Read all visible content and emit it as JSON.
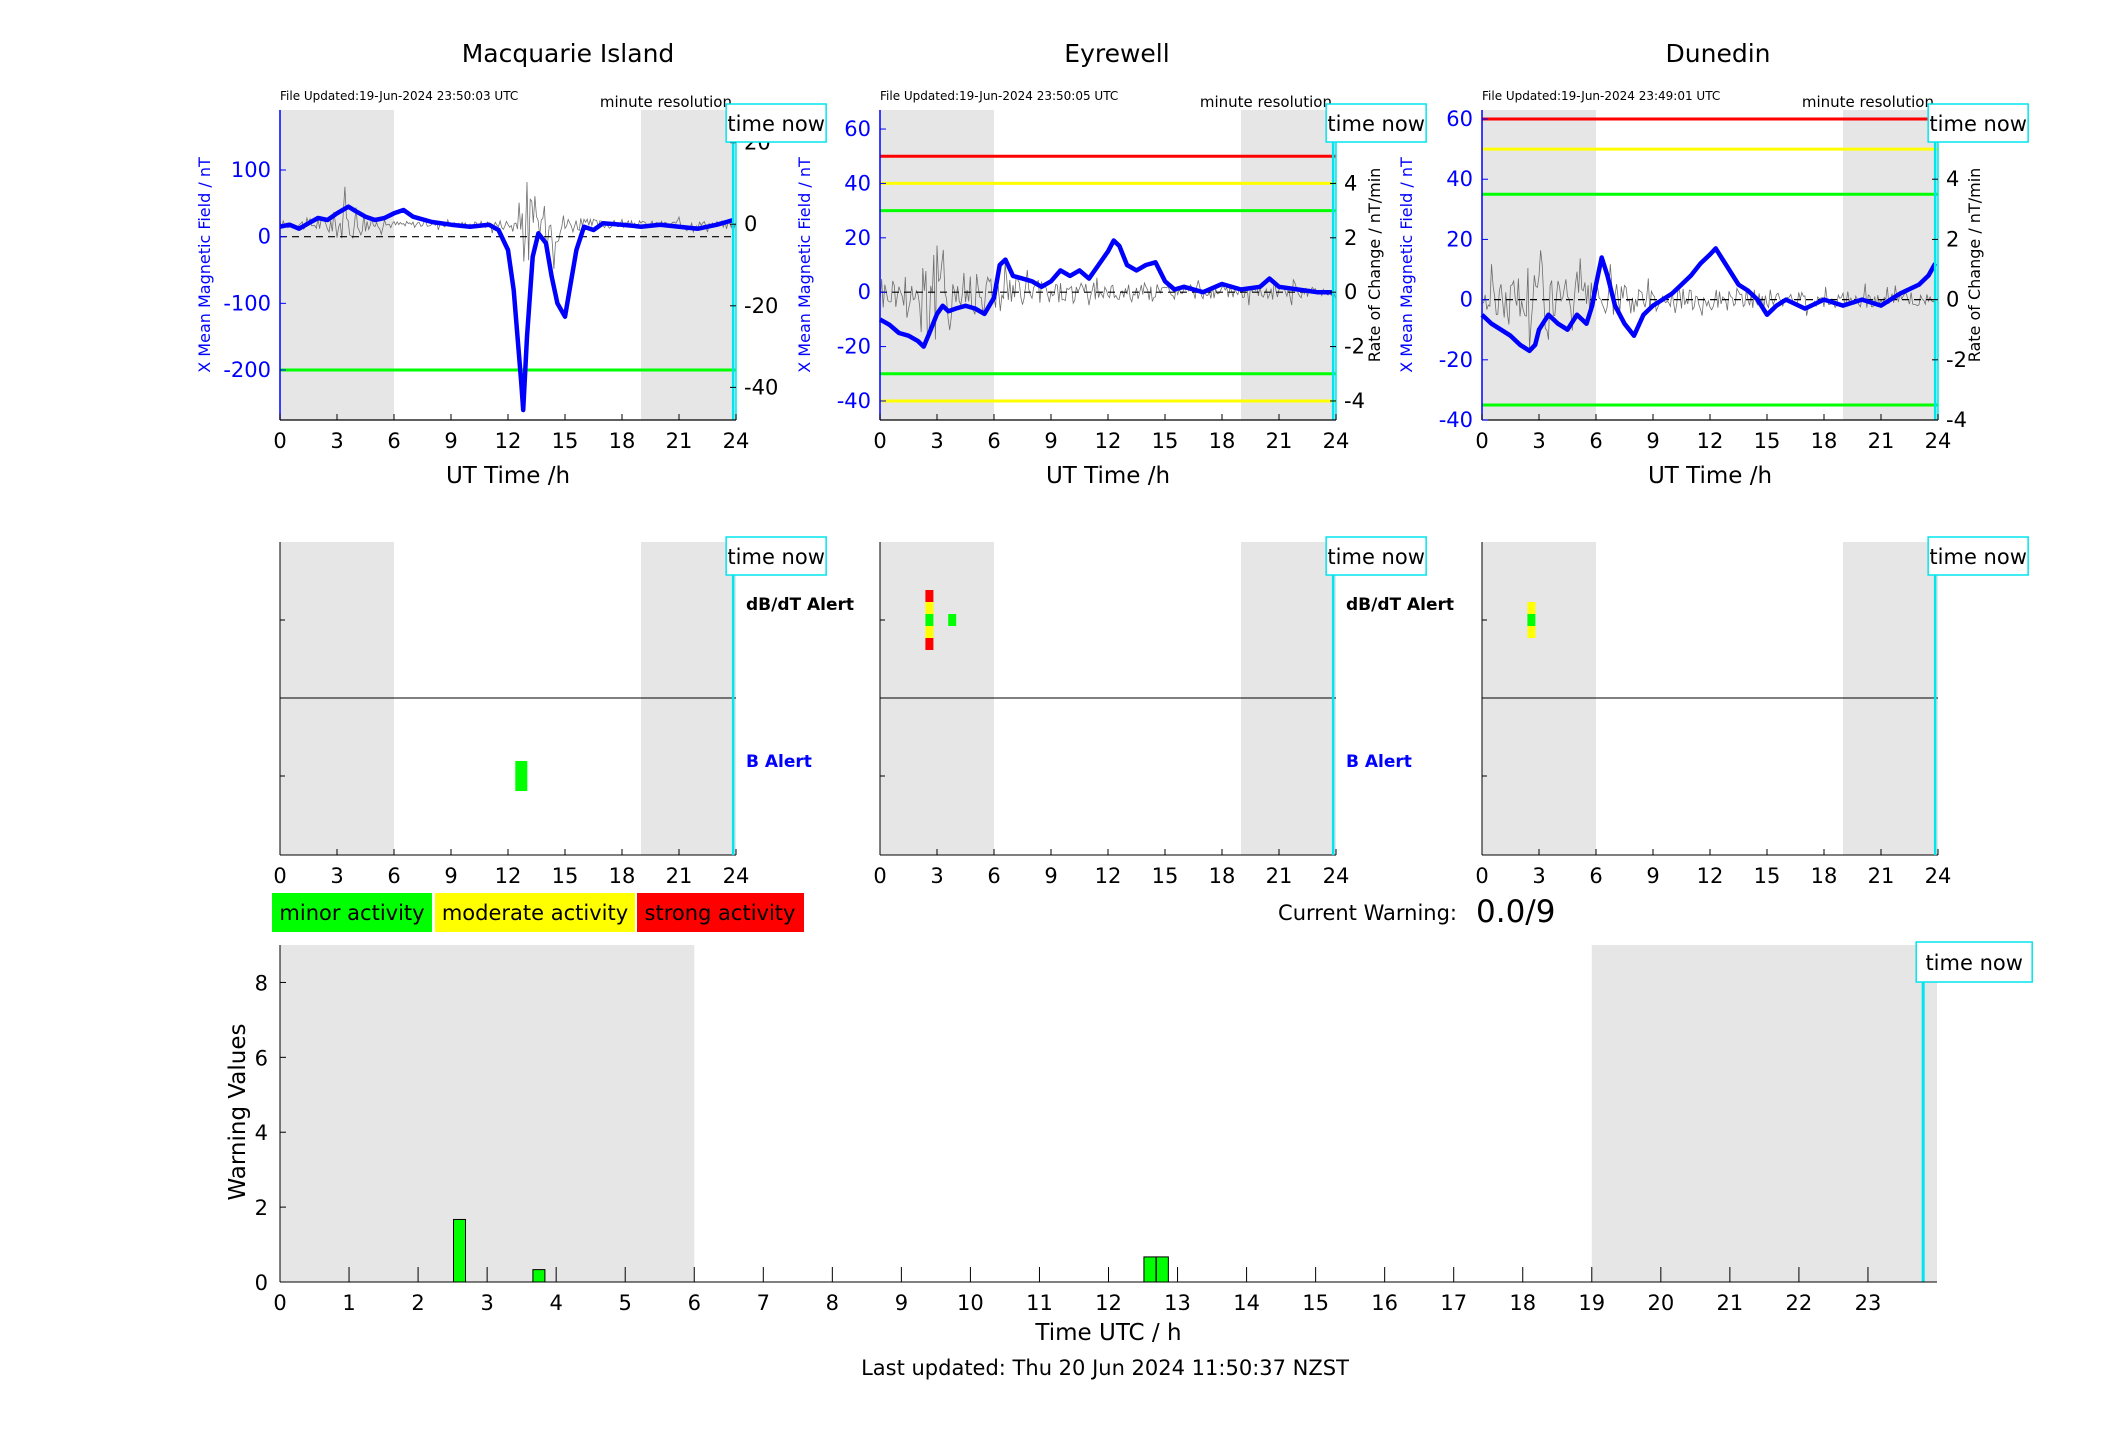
{
  "footer": {
    "last_updated": "Last updated: Thu 20 Jun 2024 11:50:37 NZST"
  },
  "legend": {
    "minor": "minor activity",
    "moderate": "moderate activity",
    "strong": "strong activity"
  },
  "current_warning": {
    "label": "Current Warning:",
    "value": "0.0/9"
  },
  "common": {
    "time_now": "time now",
    "minute_resolution": "minute resolution",
    "dbdt_alert": "dB/dT Alert",
    "b_alert": "B Alert",
    "colors": {
      "field": "#0000ff",
      "shade": "#e6e6e6",
      "minor": "#00ff00",
      "moderate": "#ffff00",
      "strong": "#ff0000",
      "time_now": "#00e5ee"
    }
  },
  "chart_data": [
    {
      "type": "line",
      "title": "Macquarie Island",
      "file_updated": "File Updated:19-Jun-2024 23:50:03 UTC",
      "xlabel": "UT Time /h",
      "ylabel_left": "X Mean Magnetic Field / nT",
      "ylabel_right": "",
      "xlim": [
        0,
        24
      ],
      "xticks": [
        0,
        3,
        6,
        9,
        12,
        15,
        18,
        21,
        24
      ],
      "ylim_left": [
        -275,
        190
      ],
      "yticks_left": [
        -200,
        -100,
        0,
        100
      ],
      "ylim_right": [
        -48,
        28
      ],
      "yticks_right": [
        -40,
        -20,
        0,
        20
      ],
      "shaded_hours": [
        [
          0,
          6
        ],
        [
          19,
          24
        ]
      ],
      "time_now_hour": 23.85,
      "thresholds": [
        {
          "color": "#00ff00",
          "value": -200
        }
      ],
      "series": [
        {
          "values_x": [
            0,
            0.5,
            1,
            1.5,
            2,
            2.5,
            3,
            3.3,
            3.6,
            4,
            4.5,
            5,
            5.5,
            6,
            6.5,
            7,
            8,
            9,
            10,
            11,
            11.5,
            12,
            12.3,
            12.5,
            12.7,
            12.8,
            13,
            13.3,
            13.6,
            14,
            14.3,
            14.6,
            15,
            15.3,
            15.6,
            16,
            16.5,
            17,
            18,
            19,
            20,
            21,
            22,
            23,
            23.5,
            23.85
          ],
          "values_y": [
            15,
            18,
            12,
            20,
            28,
            25,
            35,
            40,
            45,
            38,
            30,
            25,
            28,
            35,
            40,
            30,
            22,
            18,
            15,
            18,
            10,
            -20,
            -80,
            -150,
            -220,
            -260,
            -150,
            -30,
            5,
            -10,
            -60,
            -100,
            -120,
            -70,
            -20,
            15,
            10,
            20,
            18,
            15,
            18,
            15,
            12,
            18,
            22,
            25
          ]
        }
      ],
      "rate_of_change": {
        "x": [
          0,
          1,
          2,
          3,
          3.5,
          4,
          5,
          6,
          8,
          10,
          12,
          12.5,
          13,
          13.5,
          14,
          14.5,
          15,
          16,
          18,
          20,
          22,
          24
        ],
        "amplitude": [
          2,
          3,
          4,
          8,
          10,
          7,
          3,
          2,
          1.5,
          1.5,
          3,
          10,
          28,
          14,
          10,
          12,
          6,
          3,
          2,
          2,
          2,
          2
        ]
      }
    },
    {
      "type": "line",
      "title": "Eyrewell",
      "file_updated": "File Updated:19-Jun-2024 23:50:05 UTC",
      "xlabel": "UT Time /h",
      "ylabel_left": "X Mean Magnetic Field / nT",
      "ylabel_right": "Rate of Change / nT/min",
      "xlim": [
        0,
        24
      ],
      "xticks": [
        0,
        3,
        6,
        9,
        12,
        15,
        18,
        21,
        24
      ],
      "ylim_left": [
        -47,
        67
      ],
      "yticks_left": [
        -40,
        -20,
        0,
        20,
        40,
        60
      ],
      "ylim_right": [
        -4.7,
        6.7
      ],
      "yticks_right": [
        -4,
        -2,
        0,
        2,
        4,
        6
      ],
      "shaded_hours": [
        [
          0,
          6
        ],
        [
          19,
          24
        ]
      ],
      "time_now_hour": 23.85,
      "thresholds": [
        {
          "color": "#ff0000",
          "value": 50
        },
        {
          "color": "#ffff00",
          "value": 40
        },
        {
          "color": "#00ff00",
          "value": 30
        },
        {
          "color": "#00ff00",
          "value": -30
        },
        {
          "color": "#ffff00",
          "value": -40
        }
      ],
      "series": [
        {
          "values_x": [
            0,
            0.5,
            1,
            1.5,
            2,
            2.3,
            2.6,
            3,
            3.3,
            3.6,
            4,
            4.5,
            5,
            5.5,
            6,
            6.3,
            6.6,
            7,
            7.5,
            8,
            8.5,
            9,
            9.5,
            10,
            10.5,
            11,
            11.5,
            12,
            12.3,
            12.6,
            13,
            13.5,
            14,
            14.5,
            15,
            15.5,
            16,
            17,
            18,
            19,
            20,
            20.5,
            21,
            22,
            23,
            23.85
          ],
          "values_y": [
            -10,
            -12,
            -15,
            -16,
            -18,
            -20,
            -15,
            -8,
            -5,
            -7,
            -6,
            -5,
            -6,
            -8,
            -2,
            10,
            12,
            6,
            5,
            4,
            2,
            4,
            8,
            6,
            8,
            5,
            10,
            15,
            19,
            17,
            10,
            8,
            10,
            11,
            4,
            1,
            2,
            0,
            3,
            1,
            2,
            5,
            2,
            1,
            0,
            0
          ]
        }
      ],
      "rate_of_change": {
        "x": [
          0,
          1,
          2,
          2.5,
          3,
          3.5,
          4,
          5,
          6,
          7,
          8,
          10,
          12,
          14,
          16,
          18,
          20,
          22,
          24
        ],
        "amplitude": [
          1,
          1.5,
          3,
          6,
          4.5,
          3.5,
          2.5,
          2,
          1.8,
          1.5,
          1.2,
          0.8,
          0.8,
          0.8,
          0.6,
          0.5,
          0.5,
          0.5,
          0.4
        ]
      }
    },
    {
      "type": "line",
      "title": "Dunedin",
      "file_updated": "File Updated:19-Jun-2024 23:49:01 UTC",
      "xlabel": "UT Time /h",
      "ylabel_left": "X Mean Magnetic Field / nT",
      "ylabel_right": "Rate of Change / nT/min",
      "xlim": [
        0,
        24
      ],
      "xticks": [
        0,
        3,
        6,
        9,
        12,
        15,
        18,
        21,
        24
      ],
      "ylim_left": [
        -40,
        63
      ],
      "yticks_left": [
        -40,
        -20,
        0,
        20,
        40,
        60
      ],
      "ylim_right": [
        -4,
        6.3
      ],
      "yticks_right": [
        -4,
        -2,
        0,
        2,
        4,
        6
      ],
      "shaded_hours": [
        [
          0,
          6
        ],
        [
          19,
          24
        ]
      ],
      "time_now_hour": 23.85,
      "thresholds": [
        {
          "color": "#ff0000",
          "value": 60
        },
        {
          "color": "#ffff00",
          "value": 50
        },
        {
          "color": "#00ff00",
          "value": 35
        },
        {
          "color": "#00ff00",
          "value": -35
        }
      ],
      "series": [
        {
          "values_x": [
            0,
            0.5,
            1,
            1.5,
            2,
            2.5,
            2.8,
            3,
            3.5,
            4,
            4.5,
            5,
            5.5,
            5.8,
            6,
            6.3,
            6.6,
            7,
            7.5,
            8,
            8.5,
            9,
            9.5,
            10,
            10.5,
            11,
            11.5,
            12,
            12.3,
            12.6,
            13,
            13.5,
            14,
            14.5,
            15,
            15.5,
            16,
            17,
            18,
            19,
            20,
            21,
            22,
            23,
            23.5,
            23.85
          ],
          "values_y": [
            -5,
            -8,
            -10,
            -12,
            -15,
            -17,
            -15,
            -10,
            -5,
            -8,
            -10,
            -5,
            -8,
            -2,
            5,
            14,
            8,
            -2,
            -8,
            -12,
            -5,
            -2,
            0,
            2,
            5,
            8,
            12,
            15,
            17,
            14,
            10,
            5,
            3,
            0,
            -5,
            -2,
            0,
            -3,
            0,
            -2,
            0,
            -2,
            2,
            5,
            8,
            12
          ]
        }
      ],
      "rate_of_change": {
        "x": [
          0,
          1,
          2,
          2.5,
          3,
          3.5,
          4,
          5,
          6,
          7,
          8,
          10,
          12,
          14,
          16,
          18,
          20,
          22,
          24
        ],
        "amplitude": [
          1,
          1.5,
          2.5,
          4,
          2.8,
          2.2,
          1.8,
          1.5,
          1.2,
          1.2,
          1,
          0.8,
          0.8,
          0.8,
          0.7,
          0.6,
          0.6,
          0.6,
          0.5
        ]
      }
    },
    {
      "type": "alert_timeline",
      "station": "Macquarie Island",
      "xlim": [
        0,
        24
      ],
      "xticks": [
        0,
        3,
        6,
        9,
        12,
        15,
        18,
        21,
        24
      ],
      "shaded_hours": [
        [
          0,
          6
        ],
        [
          19,
          24
        ]
      ],
      "time_now_hour": 23.85,
      "dbdt_alerts": [],
      "b_alerts": [
        {
          "hour": 12.7,
          "levels": [
            "minor"
          ]
        }
      ]
    },
    {
      "type": "alert_timeline",
      "station": "Eyrewell",
      "xlim": [
        0,
        24
      ],
      "xticks": [
        0,
        3,
        6,
        9,
        12,
        15,
        18,
        21,
        24
      ],
      "shaded_hours": [
        [
          0,
          6
        ],
        [
          19,
          24
        ]
      ],
      "time_now_hour": 23.85,
      "dbdt_alerts": [
        {
          "hour": 2.6,
          "levels": [
            "strong",
            "moderate",
            "minor",
            "moderate",
            "strong"
          ]
        },
        {
          "hour": 3.8,
          "levels": [
            "minor"
          ]
        }
      ],
      "b_alerts": []
    },
    {
      "type": "alert_timeline",
      "station": "Dunedin",
      "xlim": [
        0,
        24
      ],
      "xticks": [
        0,
        3,
        6,
        9,
        12,
        15,
        18,
        21,
        24
      ],
      "shaded_hours": [
        [
          0,
          6
        ],
        [
          19,
          24
        ]
      ],
      "time_now_hour": 23.85,
      "dbdt_alerts": [
        {
          "hour": 2.6,
          "levels": [
            "moderate",
            "minor",
            "moderate"
          ]
        }
      ],
      "b_alerts": []
    },
    {
      "type": "bar",
      "xlabel": "Time UTC / h",
      "ylabel": "Warning Values",
      "xlim": [
        0,
        24
      ],
      "xticks": [
        0,
        1,
        2,
        3,
        4,
        5,
        6,
        7,
        8,
        9,
        10,
        11,
        12,
        13,
        14,
        15,
        16,
        17,
        18,
        19,
        20,
        21,
        22,
        23
      ],
      "ylim": [
        0,
        9
      ],
      "yticks": [
        0,
        2,
        4,
        6,
        8
      ],
      "shaded_hours": [
        [
          0,
          6
        ],
        [
          19,
          24
        ]
      ],
      "time_now_hour": 23.8,
      "bars": [
        {
          "x": 2.6,
          "value": 1.67
        },
        {
          "x": 3.75,
          "value": 0.33
        },
        {
          "x": 12.6,
          "value": 0.67
        },
        {
          "x": 12.78,
          "value": 0.67
        }
      ]
    }
  ]
}
